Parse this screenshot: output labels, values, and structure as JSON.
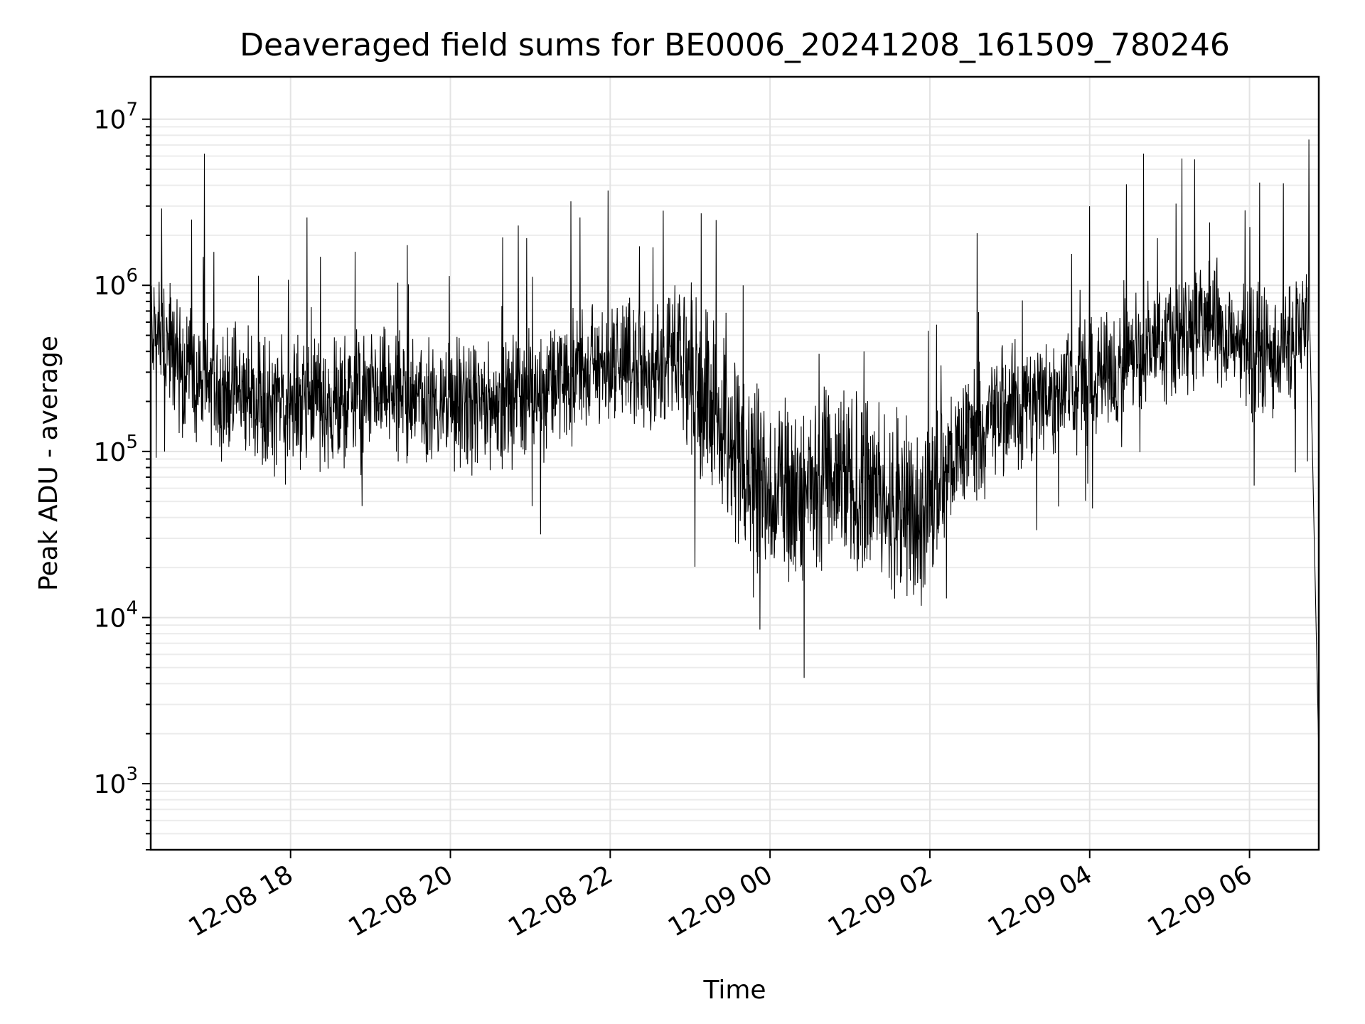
{
  "chart_data": {
    "type": "line",
    "title": "Deaveraged field sums for BE0006_20241208_161509_780246",
    "xlabel": "Time",
    "ylabel": "Peak ADU - average",
    "yscale": "log",
    "ylim": [
      400,
      18000000
    ],
    "xlim": [
      "2024-12-08 16:15",
      "2024-12-09 06:52"
    ],
    "grid": true,
    "x_ticks": [
      {
        "at": "2024-12-08 18:00",
        "label": "12-08 18"
      },
      {
        "at": "2024-12-08 20:00",
        "label": "12-08 20"
      },
      {
        "at": "2024-12-08 22:00",
        "label": "12-08 22"
      },
      {
        "at": "2024-12-09 00:00",
        "label": "12-09 00"
      },
      {
        "at": "2024-12-09 02:00",
        "label": "12-09 02"
      },
      {
        "at": "2024-12-09 04:00",
        "label": "12-09 04"
      },
      {
        "at": "2024-12-09 06:00",
        "label": "12-09 06"
      }
    ],
    "y_ticks": [
      {
        "value": 1000,
        "base": "10",
        "exp": "3"
      },
      {
        "value": 10000,
        "base": "10",
        "exp": "4"
      },
      {
        "value": 100000,
        "base": "10",
        "exp": "5"
      },
      {
        "value": 1000000,
        "base": "10",
        "exp": "6"
      },
      {
        "value": 10000000,
        "base": "10",
        "exp": "7"
      }
    ],
    "series": [
      {
        "color": "#000000",
        "x": [
          "2024-12-08 16:15",
          "2024-12-08 16:20",
          "2024-12-08 16:30",
          "2024-12-08 16:40",
          "2024-12-08 16:50",
          "2024-12-08 17:00",
          "2024-12-08 17:10",
          "2024-12-08 17:20",
          "2024-12-08 17:30",
          "2024-12-08 17:40",
          "2024-12-08 17:50",
          "2024-12-08 18:00",
          "2024-12-08 18:15",
          "2024-12-08 18:30",
          "2024-12-08 18:45",
          "2024-12-08 19:00",
          "2024-12-08 19:15",
          "2024-12-08 19:30",
          "2024-12-08 19:45",
          "2024-12-08 20:00",
          "2024-12-08 20:15",
          "2024-12-08 20:30",
          "2024-12-08 20:45",
          "2024-12-08 21:00",
          "2024-12-08 21:15",
          "2024-12-08 21:30",
          "2024-12-08 21:45",
          "2024-12-08 22:00",
          "2024-12-08 22:15",
          "2024-12-08 22:30",
          "2024-12-08 22:45",
          "2024-12-08 23:00",
          "2024-12-08 23:15",
          "2024-12-08 23:30",
          "2024-12-08 23:45",
          "2024-12-09 00:00",
          "2024-12-09 00:15",
          "2024-12-09 00:30",
          "2024-12-09 00:45",
          "2024-12-09 01:00",
          "2024-12-09 01:15",
          "2024-12-09 01:30",
          "2024-12-09 01:45",
          "2024-12-09 02:00",
          "2024-12-09 02:15",
          "2024-12-09 02:30",
          "2024-12-09 02:45",
          "2024-12-09 03:00",
          "2024-12-09 03:15",
          "2024-12-09 03:30",
          "2024-12-09 03:45",
          "2024-12-09 04:00",
          "2024-12-09 04:15",
          "2024-12-09 04:30",
          "2024-12-09 04:45",
          "2024-12-09 05:00",
          "2024-12-09 05:15",
          "2024-12-09 05:30",
          "2024-12-09 05:45",
          "2024-12-09 06:00",
          "2024-12-09 06:15",
          "2024-12-09 06:30",
          "2024-12-09 06:45",
          "2024-12-09 06:52"
        ],
        "y": [
          600000,
          500000,
          400000,
          300000,
          260000,
          250000,
          240000,
          230000,
          220000,
          210000,
          205000,
          200000,
          195000,
          200000,
          210000,
          215000,
          220000,
          215000,
          205000,
          190000,
          180000,
          185000,
          200000,
          230000,
          260000,
          290000,
          320000,
          340000,
          330000,
          320000,
          350000,
          300000,
          200000,
          120000,
          80000,
          60000,
          55000,
          58000,
          62000,
          65000,
          60000,
          50000,
          35000,
          55000,
          90000,
          130000,
          160000,
          185000,
          200000,
          220000,
          240000,
          260000,
          300000,
          350000,
          420000,
          500000,
          560000,
          580000,
          520000,
          430000,
          400000,
          420000,
          700000,
          1500
        ]
      }
    ]
  }
}
